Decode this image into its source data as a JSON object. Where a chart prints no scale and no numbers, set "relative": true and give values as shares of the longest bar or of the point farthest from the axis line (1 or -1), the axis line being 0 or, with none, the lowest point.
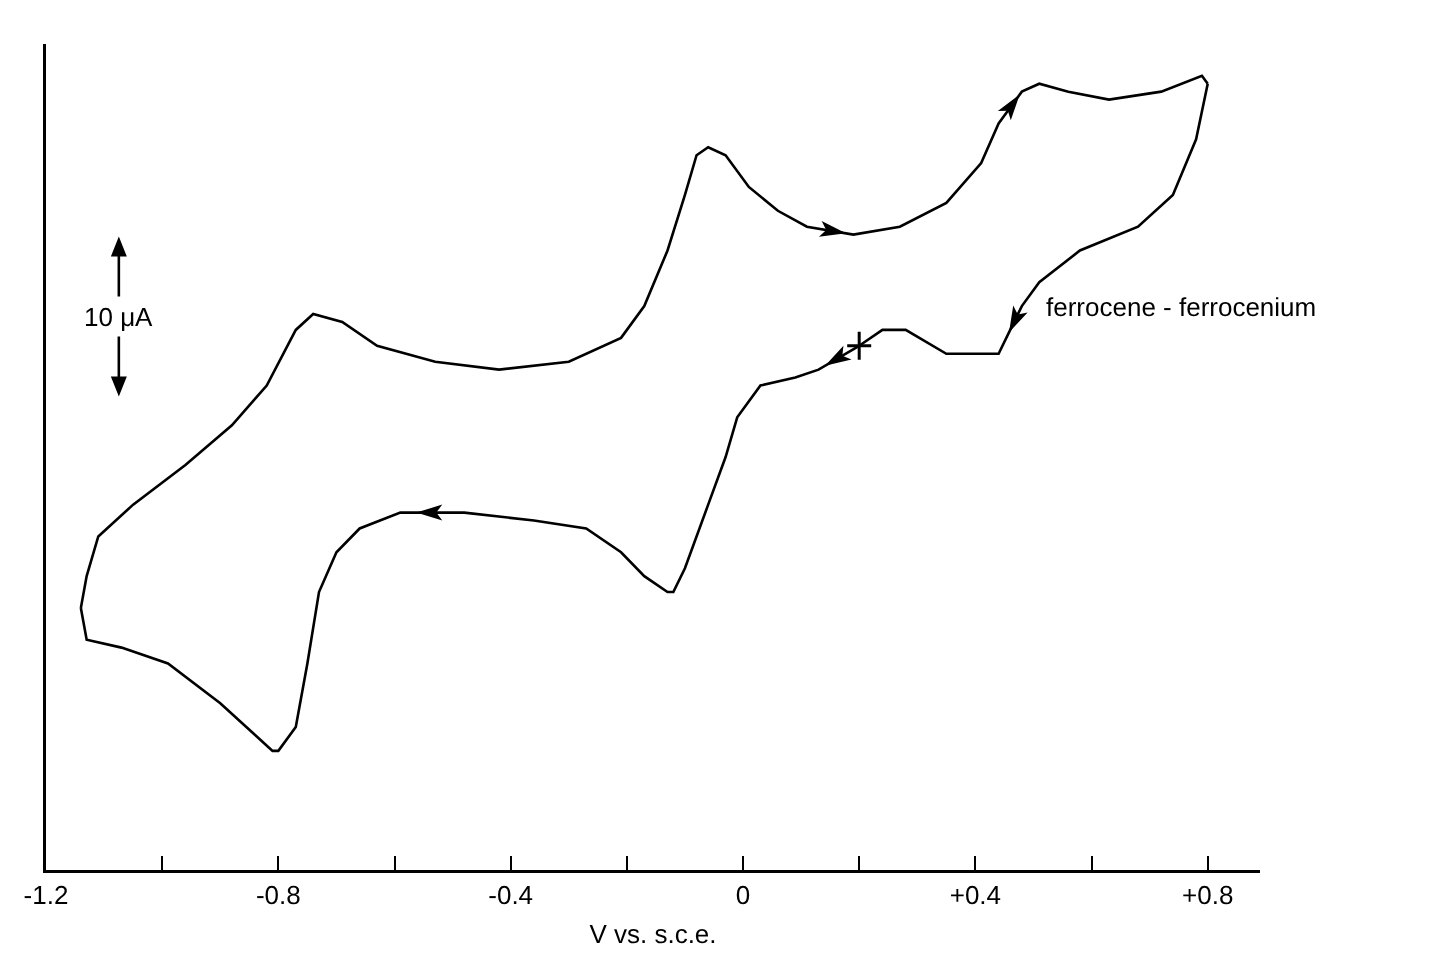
{
  "chart_data": {
    "type": "line",
    "relative": true,
    "xlabel": "V vs. s.c.e.",
    "xlim": [
      -1.2,
      0.89
    ],
    "xticks": [
      -1.2,
      {
        "value": -1.0,
        "label": null
      },
      -0.8,
      {
        "value": -0.6,
        "label": null
      },
      -0.4,
      {
        "value": -0.2,
        "label": null
      },
      0,
      {
        "value": 0.2,
        "label": null
      },
      {
        "value": 0.4,
        "label": "+0.4"
      },
      {
        "value": 0.6,
        "label": null
      },
      {
        "value": 0.8,
        "label": "+0.8"
      }
    ],
    "tick_labels": "x",
    "marker": "none",
    "line_style": "solid",
    "series": [
      {
        "color": "#000000",
        "x": [
          0.2,
          0.13,
          0.09,
          0.03,
          -0.01,
          -0.03,
          -0.06,
          -0.1,
          -0.12,
          -0.13,
          -0.17,
          -0.21,
          -0.27,
          -0.36,
          -0.48,
          -0.59,
          -0.66,
          -0.7,
          -0.73,
          -0.75,
          -0.77,
          -0.8,
          -0.81,
          -0.84,
          -0.9,
          -0.99,
          -1.07,
          -1.13,
          -1.14
        ],
        "values": [
          0.66,
          0.63,
          0.62,
          0.61,
          0.57,
          0.52,
          0.46,
          0.38,
          0.35,
          0.35,
          0.37,
          0.4,
          0.43,
          0.44,
          0.45,
          0.45,
          0.43,
          0.4,
          0.35,
          0.26,
          0.18,
          0.15,
          0.15,
          0.17,
          0.21,
          0.26,
          0.28,
          0.29,
          0.33
        ]
      },
      {
        "color": "#000000",
        "x": [
          -1.14,
          -1.13,
          -1.11,
          -1.05,
          -0.96,
          -0.88,
          -0.82,
          -0.77,
          -0.74,
          -0.69,
          -0.63,
          -0.53,
          -0.42,
          -0.3,
          -0.21,
          -0.17,
          -0.13,
          -0.1,
          -0.08,
          -0.06,
          -0.03,
          0.01,
          0.06,
          0.11,
          0.19,
          0.27,
          0.35,
          0.41,
          0.44,
          0.48,
          0.51,
          0.56,
          0.63,
          0.72,
          0.79,
          0.8
        ],
        "values": [
          0.33,
          0.37,
          0.42,
          0.46,
          0.51,
          0.56,
          0.61,
          0.68,
          0.7,
          0.69,
          0.66,
          0.64,
          0.63,
          0.64,
          0.67,
          0.71,
          0.78,
          0.85,
          0.9,
          0.91,
          0.9,
          0.86,
          0.83,
          0.81,
          0.8,
          0.81,
          0.84,
          0.89,
          0.94,
          0.98,
          0.99,
          0.98,
          0.97,
          0.98,
          1.0,
          0.99
        ]
      },
      {
        "color": "#000000",
        "x": [
          0.8,
          0.78,
          0.74,
          0.68,
          0.58,
          0.51,
          0.48,
          0.46,
          0.44,
          0.41,
          0.35,
          0.28,
          0.24,
          0.2
        ],
        "values": [
          0.99,
          0.92,
          0.85,
          0.81,
          0.78,
          0.74,
          0.71,
          0.68,
          0.65,
          0.65,
          0.65,
          0.68,
          0.68,
          0.66
        ]
      }
    ],
    "annotations": [
      "10 μA",
      {
        "text": "ferrocene - ferrocenium",
        "x": 0.48,
        "y": 0.71
      }
    ]
  }
}
